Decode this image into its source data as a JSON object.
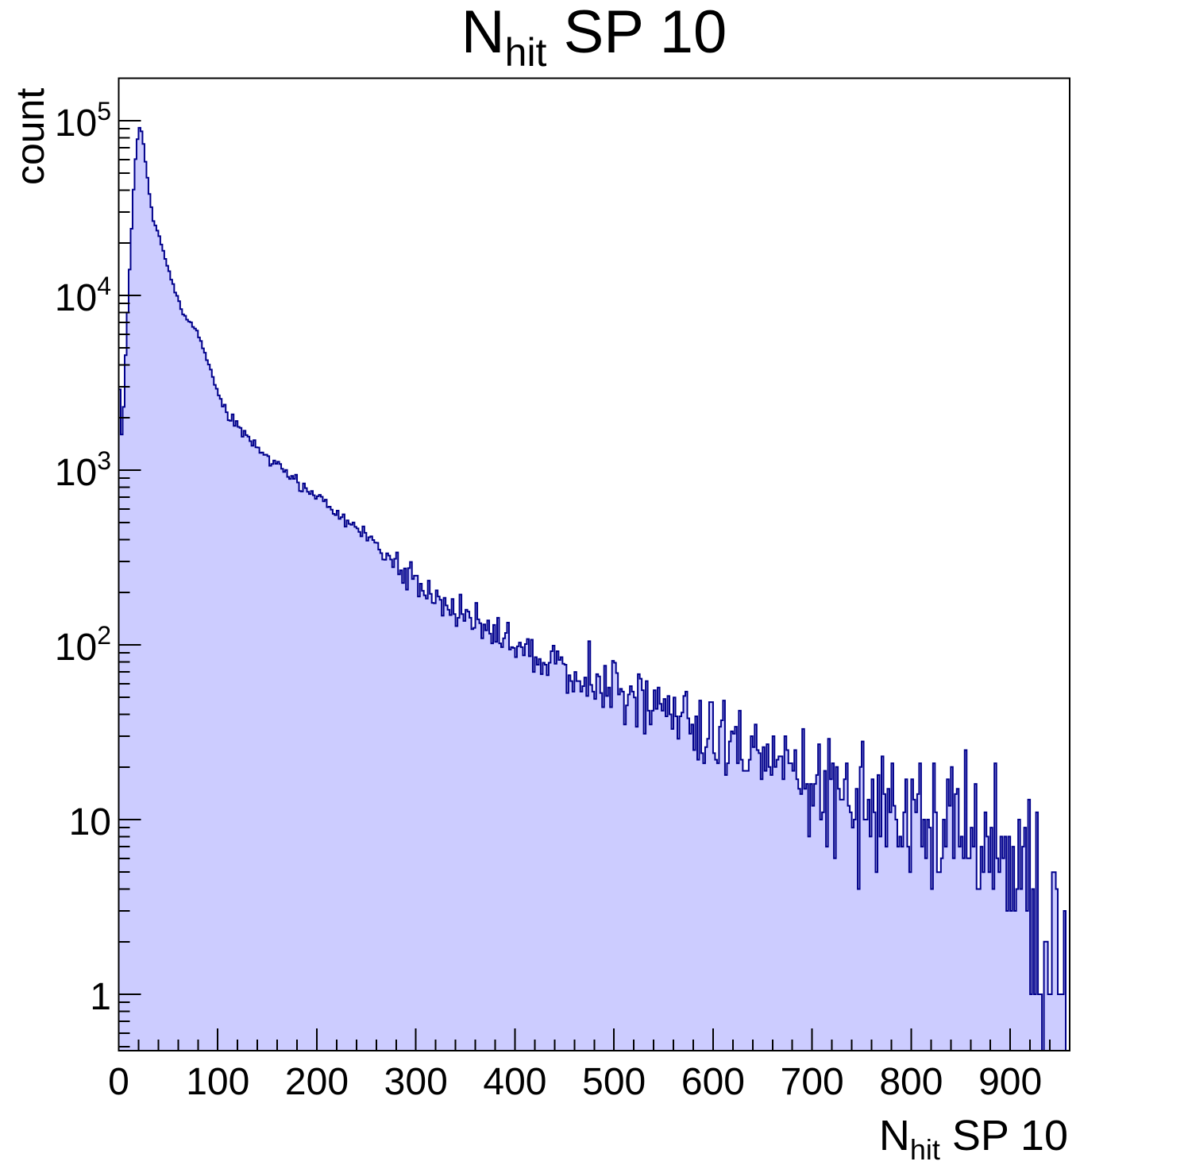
{
  "title": {
    "main": "N",
    "sub": "hit",
    "rest": " SP 10"
  },
  "axes": {
    "x": {
      "title": {
        "main": "N",
        "sub": "hit",
        "rest": " SP 10"
      },
      "min": 0,
      "max": 960,
      "major_tick_step": 100,
      "minor_tick_step": 20,
      "tick_values": [
        0,
        100,
        200,
        300,
        400,
        500,
        600,
        700,
        800,
        900
      ],
      "tick_labels": [
        "0",
        "100",
        "200",
        "300",
        "400",
        "500",
        "600",
        "700",
        "800",
        "900"
      ]
    },
    "y": {
      "title": "count",
      "scale": "log",
      "min": 0.48,
      "max": 172000,
      "tick_labels": [
        {
          "value": 1,
          "base": "1",
          "exp": ""
        },
        {
          "value": 10,
          "base": "10",
          "exp": ""
        },
        {
          "value": 100,
          "base": "10",
          "exp": "2"
        },
        {
          "value": 1000,
          "base": "10",
          "exp": "3"
        },
        {
          "value": 10000,
          "base": "10",
          "exp": "4"
        },
        {
          "value": 100000,
          "base": "10",
          "exp": "5"
        }
      ]
    }
  },
  "chart_data": {
    "type": "histogram",
    "title": "N_hit SP 10",
    "xlabel": "N_hit SP 10",
    "ylabel": "count",
    "bin_width": 2,
    "x_range": [
      0,
      960
    ],
    "ylim": [
      0.48,
      172000
    ],
    "yscale": "log",
    "grid": false,
    "peak": {
      "x": 21,
      "count": 91000
    },
    "first_bins": [
      2900,
      1600,
      2300
    ],
    "envelope_x": [
      7,
      9,
      11,
      13,
      15,
      17,
      19,
      21,
      23,
      25,
      28,
      31,
      35,
      40,
      45,
      50,
      59,
      65,
      72,
      80,
      90,
      100,
      110,
      120,
      140,
      160,
      180,
      200,
      220,
      240,
      260,
      280,
      300,
      320,
      340,
      360,
      380,
      400,
      430,
      460,
      500,
      540,
      570,
      600,
      640,
      680,
      700,
      730,
      760,
      800,
      840,
      870,
      900,
      910,
      915,
      920,
      925,
      930,
      940,
      950,
      956
    ],
    "envelope_count": [
      4600,
      8000,
      14000,
      24000,
      40000,
      60000,
      79000,
      91000,
      87000,
      74000,
      52000,
      38000,
      27000,
      22500,
      18000,
      14000,
      10000,
      7800,
      7000,
      6200,
      4100,
      2700,
      2100,
      1800,
      1350,
      1080,
      870,
      700,
      560,
      470,
      370,
      290,
      225,
      185,
      155,
      135,
      118,
      105,
      82,
      68,
      54,
      43,
      37,
      29,
      24,
      18,
      16,
      14,
      11.5,
      11,
      9.5,
      8,
      6.5,
      5.5,
      5,
      3.5,
      2.5,
      2,
      1.5,
      1.2,
      1
    ],
    "noise": {
      "model": "lognormal-poisson",
      "seed": 20,
      "scale": 1.35
    },
    "colors": {
      "fill": "#ccccff",
      "line": "#00008b",
      "axis": "#000000",
      "text": "#000000",
      "background": "#ffffff"
    }
  }
}
